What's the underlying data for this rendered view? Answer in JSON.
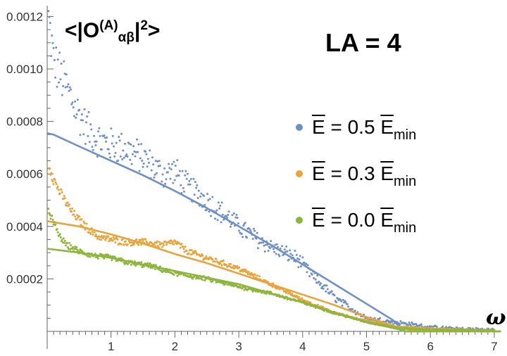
{
  "chart_data": {
    "type": "scatter",
    "title_parts": {
      "prefix": "<|O",
      "sup": "(A)",
      "sub": "αβ",
      "suffix": "|",
      "power": "2",
      "close": ">"
    },
    "annotation": "LA = 4",
    "xlabel": "ω",
    "xlim": [
      0,
      7.1
    ],
    "ylim": [
      0,
      0.00124
    ],
    "x_ticks": [
      "1",
      "2",
      "3",
      "4",
      "5",
      "6",
      "7"
    ],
    "y_ticks": [
      "0.0002",
      "0.0004",
      "0.0006",
      "0.0008",
      "0.0010",
      "0.0012"
    ],
    "series": [
      {
        "name": "Ē = 0.5 Ē_min",
        "label_main": "E = 0.5 E",
        "label_sub": "min",
        "energy": "0.5",
        "color": "#6f90c4",
        "scatter_x": [
          0.02,
          0.1,
          0.2,
          0.3,
          0.45,
          0.6,
          0.8,
          1.0,
          1.2,
          1.5,
          1.8,
          2.0,
          2.2,
          2.5,
          2.8,
          3.0,
          3.3,
          3.6,
          3.9,
          4.2,
          4.5,
          4.8,
          5.0,
          5.3,
          5.6,
          6.0,
          6.5,
          7.0
        ],
        "scatter_y": [
          0.00119,
          0.00103,
          0.00098,
          0.00093,
          0.00085,
          0.00078,
          0.00073,
          0.00071,
          0.0007,
          0.00066,
          0.0006,
          0.00061,
          0.00055,
          0.0005,
          0.00044,
          0.0004,
          0.00035,
          0.00031,
          0.00028,
          0.0002,
          0.00013,
          8e-05,
          5e-05,
          4e-05,
          3e-05,
          1.5e-05,
          8e-06,
          5e-06
        ],
        "curve_x": [
          0,
          0.1,
          0.5,
          1,
          1.5,
          2,
          2.5,
          3,
          3.5,
          4,
          4.5,
          5,
          5.4,
          5.6,
          7.1
        ],
        "curve_y": [
          0.000755,
          0.00075,
          0.000705,
          0.00065,
          0.000595,
          0.000535,
          0.00047,
          0.0004,
          0.00033,
          0.000255,
          0.00018,
          0.000105,
          4.5e-05,
          0.0,
          0.0
        ]
      },
      {
        "name": "Ē = 0.3 Ē_min",
        "label_main": "E = 0.3 E",
        "label_sub": "min",
        "energy": "0.3",
        "color": "#e8a43c",
        "scatter_x": [
          0.02,
          0.1,
          0.2,
          0.3,
          0.4,
          0.6,
          0.8,
          1.0,
          1.2,
          1.5,
          1.8,
          2.0,
          2.2,
          2.5,
          3.0,
          3.5,
          4.0,
          4.5,
          5.0,
          5.5,
          6.0,
          6.5,
          7.0
        ],
        "scatter_y": [
          0.00064,
          0.00058,
          0.00053,
          0.00049,
          0.00045,
          0.0004,
          0.00036,
          0.00035,
          0.00034,
          0.00034,
          0.00033,
          0.00034,
          0.000305,
          0.00028,
          0.00024,
          0.00018,
          0.00012,
          7e-05,
          4e-05,
          1.8e-05,
          1e-05,
          6e-06,
          4e-06
        ],
        "curve_x": [
          0,
          0.5,
          1,
          1.5,
          2,
          2.5,
          3,
          3.5,
          4,
          4.5,
          5,
          5.5,
          5.8,
          7.1
        ],
        "curve_y": [
          0.00042,
          0.0004,
          0.00037,
          0.000335,
          0.000295,
          0.00026,
          0.00022,
          0.00018,
          0.00014,
          0.0001,
          5.5e-05,
          1.5e-05,
          0.0,
          0.0
        ]
      },
      {
        "name": "Ē = 0.0 Ē_min",
        "label_main": "E = 0.0 E",
        "label_sub": "min",
        "energy": "0.0",
        "color": "#8fb63c",
        "scatter_x": [
          0.02,
          0.1,
          0.2,
          0.3,
          0.5,
          0.7,
          1.0,
          1.3,
          1.6,
          2.0,
          2.5,
          3.0,
          3.5,
          4.0,
          4.5,
          5.0,
          5.5,
          6.0,
          6.5,
          7.0
        ],
        "scatter_y": [
          0.00047,
          0.00041,
          0.00036,
          0.00033,
          0.000305,
          0.00029,
          0.00028,
          0.00026,
          0.00025,
          0.00022,
          0.0002,
          0.00017,
          0.000145,
          0.00011,
          7e-05,
          3.5e-05,
          1.2e-05,
          6e-06,
          4e-06,
          3e-06
        ],
        "curve_x": [
          0,
          0.5,
          1,
          1.5,
          2,
          2.5,
          3,
          3.5,
          4,
          4.5,
          5,
          5.5,
          5.6,
          7.1
        ],
        "curve_y": [
          0.000315,
          0.0003,
          0.00028,
          0.000255,
          0.00023,
          0.000205,
          0.00018,
          0.000145,
          0.00011,
          7e-05,
          3.5e-05,
          8e-06,
          0.0,
          0.0
        ]
      }
    ]
  }
}
